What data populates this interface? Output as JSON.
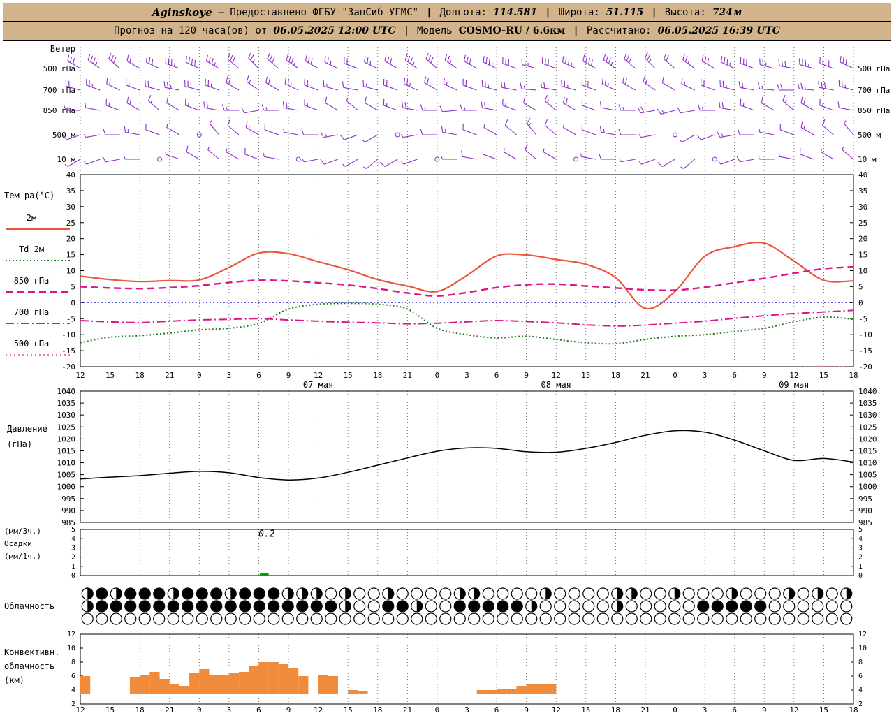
{
  "header1": {
    "station": "Aginskoye",
    "provider": "— Предоставлено ФГБУ \"ЗапСиб УГМС\"",
    "sep": "|",
    "lon_label": "Долгота:",
    "lon_value": "114.581",
    "lat_label": "Широта:",
    "lat_value": "51.115",
    "alt_label": "Высота:",
    "alt_value": "724м"
  },
  "header2": {
    "forecast_label": "Прогноз на 120 часа(ов) от",
    "forecast_time": "06.05.2025 12:00 UTC",
    "sep": "|",
    "model_label": "Модель",
    "model_value": "COSMO-RU / 6.6км",
    "calc_label": "Рассчитано:",
    "calc_value": "06.05.2025 16:39 UTC"
  },
  "chart_data": {
    "type": "meteogram",
    "colors": {
      "wind": "#8b2fc9",
      "t2m": "#e9573d",
      "td": "#1f7a1f",
      "t850": "#dd1485",
      "t700": "#dd1485",
      "t500": "#ef7bb0",
      "pressure": "#000000",
      "precip": "#00a400",
      "convective": "#ef8b3a",
      "grid": "#555555",
      "zero_line": "#4444dd",
      "header_bg": "#d2b48c"
    },
    "x_axis": {
      "tick_step_hours": 3,
      "total_hours": 78,
      "hour_labels": [
        "12",
        "15",
        "18",
        "21",
        "0",
        "3",
        "6",
        "9",
        "12",
        "15",
        "18",
        "21",
        "0",
        "3",
        "6",
        "9",
        "12",
        "15",
        "18",
        "21",
        "0",
        "3",
        "6",
        "9",
        "12",
        "15",
        "18"
      ],
      "date_labels": [
        {
          "label": "07 мая",
          "hour": 24
        },
        {
          "label": "08 мая",
          "hour": 48
        },
        {
          "label": "09 мая",
          "hour": 72
        }
      ]
    },
    "wind": {
      "label": "Ветер",
      "barb_step_hours": 2,
      "levels": [
        {
          "label": "500 гПа",
          "dirs": [
            300,
            305,
            310,
            300,
            295,
            290,
            295,
            300,
            310,
            315,
            310,
            305,
            300,
            295,
            290,
            295,
            300,
            305,
            310,
            305,
            300,
            295,
            290,
            285,
            290,
            295,
            300,
            305,
            310,
            315,
            310,
            305,
            300,
            295,
            290,
            285,
            280,
            285,
            290,
            295
          ],
          "speeds": [
            30,
            35,
            30,
            25,
            30,
            35,
            40,
            35,
            30,
            25,
            30,
            35,
            30,
            25,
            20,
            25,
            30,
            35,
            30,
            25,
            30,
            35,
            30,
            25,
            30,
            35,
            40,
            35,
            30,
            25,
            20,
            25,
            30,
            35,
            30,
            25,
            30,
            35,
            40,
            35
          ]
        },
        {
          "label": "700 гПа",
          "dirs": [
            285,
            290,
            295,
            290,
            285,
            280,
            285,
            290,
            300,
            305,
            300,
            295,
            290,
            285,
            280,
            285,
            290,
            295,
            300,
            295,
            290,
            285,
            280,
            275,
            280,
            285,
            290,
            295,
            300,
            305,
            300,
            295,
            290,
            285,
            280,
            275,
            270,
            275,
            280,
            285
          ],
          "speeds": [
            20,
            25,
            20,
            15,
            20,
            25,
            30,
            25,
            20,
            15,
            20,
            25,
            20,
            15,
            10,
            15,
            20,
            25,
            20,
            15,
            20,
            25,
            20,
            15,
            20,
            25,
            30,
            25,
            20,
            15,
            10,
            15,
            20,
            25,
            20,
            15,
            20,
            25,
            30,
            25
          ]
        },
        {
          "label": "850 гПа",
          "dirs": [
            270,
            280,
            290,
            300,
            310,
            300,
            290,
            280,
            270,
            260,
            270,
            280,
            290,
            300,
            310,
            300,
            290,
            280,
            270,
            265,
            270,
            280,
            290,
            300,
            310,
            300,
            290,
            280,
            270,
            260,
            255,
            260,
            270,
            280,
            290,
            300,
            310,
            300,
            290,
            280
          ],
          "speeds": [
            15,
            10,
            15,
            20,
            15,
            10,
            15,
            20,
            15,
            10,
            15,
            20,
            15,
            10,
            5,
            10,
            15,
            20,
            15,
            10,
            15,
            20,
            15,
            10,
            15,
            20,
            15,
            10,
            15,
            20,
            15,
            10,
            15,
            20,
            15,
            10,
            15,
            20,
            15,
            10
          ]
        },
        {
          "label": "500 м",
          "dirs": [
            250,
            260,
            270,
            280,
            290,
            300,
            310,
            320,
            310,
            300,
            290,
            280,
            270,
            260,
            250,
            240,
            250,
            260,
            270,
            280,
            290,
            300,
            310,
            320,
            310,
            300,
            290,
            280,
            270,
            260,
            250,
            240,
            250,
            260,
            270,
            280,
            290,
            300,
            310,
            320
          ],
          "speeds": [
            10,
            5,
            10,
            15,
            10,
            5,
            2,
            5,
            10,
            15,
            10,
            5,
            10,
            15,
            10,
            5,
            2,
            5,
            10,
            15,
            10,
            5,
            10,
            15,
            10,
            5,
            10,
            15,
            10,
            5,
            2,
            5,
            10,
            15,
            10,
            5,
            10,
            15,
            10,
            5
          ]
        },
        {
          "label": "10 м",
          "dirs": [
            240,
            250,
            260,
            270,
            280,
            290,
            300,
            310,
            300,
            290,
            280,
            270,
            260,
            250,
            240,
            230,
            240,
            250,
            260,
            270,
            280,
            290,
            300,
            310,
            300,
            290,
            280,
            270,
            260,
            250,
            240,
            230,
            240,
            250,
            260,
            270,
            280,
            290,
            300,
            310
          ],
          "speeds": [
            5,
            5,
            10,
            5,
            2,
            5,
            10,
            5,
            5,
            10,
            5,
            2,
            5,
            10,
            5,
            5,
            10,
            5,
            2,
            5,
            10,
            5,
            5,
            10,
            5,
            2,
            5,
            10,
            5,
            5,
            10,
            5,
            2,
            5,
            10,
            5,
            5,
            10,
            5,
            5
          ]
        }
      ]
    },
    "temperature": {
      "label": "Тем-ра(°C)",
      "ylim": [
        -20,
        40
      ],
      "ticks": [
        -20,
        -15,
        -10,
        -5,
        0,
        5,
        10,
        15,
        20,
        25,
        30,
        35,
        40
      ],
      "series": [
        {
          "name": "2м",
          "style": "solid",
          "color_key": "t2m",
          "values": [
            8.3,
            7.2,
            6.6,
            6.9,
            7.1,
            11.0,
            15.5,
            15.3,
            12.8,
            10.3,
            7.2,
            5.2,
            3.5,
            8.5,
            14.6,
            14.9,
            13.5,
            12.0,
            7.8,
            -1.8,
            3.5,
            14.5,
            17.5,
            18.6,
            13.0,
            7.0,
            6.8
          ]
        },
        {
          "name": "Td 2м",
          "style": "dotted",
          "color_key": "td",
          "values": [
            -12.5,
            -10.8,
            -10.3,
            -9.5,
            -8.5,
            -8.0,
            -6.5,
            -2.0,
            -0.5,
            -0.2,
            -0.5,
            -2.0,
            -8.0,
            -10.0,
            -11.0,
            -10.5,
            -11.5,
            -12.5,
            -12.8,
            -11.5,
            -10.5,
            -10.0,
            -9.0,
            -8.0,
            -6.0,
            -4.5,
            -5.2
          ]
        },
        {
          "name": "850 гПа",
          "style": "dashed",
          "color_key": "t850",
          "values": [
            5.0,
            4.6,
            4.4,
            4.7,
            5.3,
            6.3,
            7.0,
            6.8,
            6.2,
            5.5,
            4.4,
            3.0,
            2.1,
            3.2,
            4.7,
            5.6,
            5.8,
            5.2,
            4.6,
            4.0,
            3.9,
            4.8,
            6.2,
            7.6,
            9.2,
            10.6,
            11.2
          ]
        },
        {
          "name": "700 гПа",
          "style": "dashdot",
          "color_key": "t700",
          "values": [
            -5.6,
            -6.0,
            -6.2,
            -5.8,
            -5.4,
            -5.2,
            -5.0,
            -5.4,
            -5.8,
            -6.1,
            -6.3,
            -6.6,
            -6.4,
            -6.0,
            -5.6,
            -5.9,
            -6.3,
            -6.9,
            -7.3,
            -7.0,
            -6.4,
            -5.8,
            -4.9,
            -4.1,
            -3.4,
            -2.9,
            -2.4
          ]
        },
        {
          "name": "500 гПа",
          "style": "dotted2",
          "color_key": "t500",
          "values": [
            -23,
            -23,
            -23.5,
            -23,
            -22.8,
            -22.5,
            -22.6,
            -22.8,
            -23,
            -23.2,
            -23.5,
            -23.8,
            -24,
            -23.5,
            -23,
            -22.8,
            -23,
            -23.3,
            -23.6,
            -23.4,
            -23,
            -22.5,
            -21.8,
            -21.2,
            -20.4,
            -19.9,
            -20.3
          ]
        }
      ]
    },
    "pressure": {
      "label_lines": [
        "Давление",
        "(гПа)"
      ],
      "ylim": [
        985,
        1040
      ],
      "ticks": [
        985,
        990,
        995,
        1000,
        1005,
        1010,
        1015,
        1020,
        1025,
        1030,
        1035,
        1040
      ],
      "values": [
        1003.2,
        1004.0,
        1004.6,
        1005.6,
        1006.4,
        1005.8,
        1003.8,
        1002.8,
        1003.6,
        1006.0,
        1009.0,
        1012.0,
        1014.8,
        1016.2,
        1016.0,
        1014.6,
        1014.4,
        1016.0,
        1018.5,
        1021.5,
        1023.4,
        1022.8,
        1019.5,
        1015.0,
        1011.0,
        1011.8,
        1010.3
      ]
    },
    "precipitation": {
      "label_lines": [
        "(мм/3ч.)",
        "Осадки",
        "(мм/1ч.)"
      ],
      "ylim": [
        0,
        5
      ],
      "ticks": [
        0,
        1,
        2,
        3,
        4,
        5
      ],
      "bars": [
        {
          "hour": 18.1,
          "width_hours": 0.9,
          "value": 0.2
        }
      ],
      "annotation": {
        "text": "0.2",
        "hour": 18.8,
        "y_value": 4.2
      }
    },
    "cloud": {
      "label": "Облачность",
      "rows": [
        {
          "name": "upper",
          "pattern": "242444244424442220200200002200002000022002000200020202"
        },
        {
          "name": "middle",
          "pattern": "244444444444444444200442004444420000020000044444000000"
        },
        {
          "name": "lower",
          "pattern": "000000000000000000000000000000000000000000000000000000"
        }
      ]
    },
    "convective": {
      "label_lines": [
        "Конвективн.",
        "облачность",
        "(км)"
      ],
      "ylim": [
        2,
        12
      ],
      "ticks": [
        2,
        4,
        6,
        8,
        10,
        12
      ],
      "base_km": 3.5,
      "bars": [
        [
          0,
          6.0
        ],
        [
          5,
          5.8
        ],
        [
          6,
          6.2
        ],
        [
          7,
          6.6
        ],
        [
          8,
          5.6
        ],
        [
          9,
          4.8
        ],
        [
          10,
          4.6
        ],
        [
          11,
          6.4
        ],
        [
          12,
          7.0
        ],
        [
          13,
          6.2
        ],
        [
          14,
          6.2
        ],
        [
          15,
          6.4
        ],
        [
          16,
          6.6
        ],
        [
          17,
          7.4
        ],
        [
          18,
          8.0
        ],
        [
          19,
          8.0
        ],
        [
          20,
          7.8
        ],
        [
          21,
          7.2
        ],
        [
          22,
          6.0
        ],
        [
          24,
          6.2
        ],
        [
          25,
          6.0
        ],
        [
          27,
          4.0
        ],
        [
          28,
          3.9
        ],
        [
          40,
          4.0
        ],
        [
          41,
          4.0
        ],
        [
          42,
          4.1
        ],
        [
          43,
          4.2
        ],
        [
          44,
          4.6
        ],
        [
          45,
          4.8
        ],
        [
          46,
          4.8
        ],
        [
          47,
          4.8
        ]
      ]
    }
  }
}
